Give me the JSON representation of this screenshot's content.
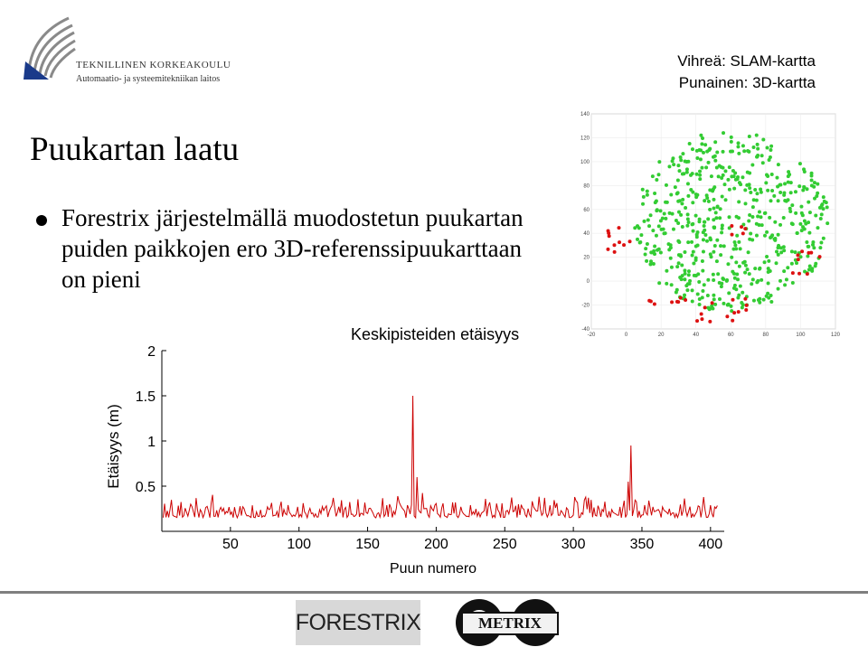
{
  "header": {
    "institution": "TEKNILLINEN KORKEAKOULU",
    "department": "Automaatio- ja systeemitekniikan laitos"
  },
  "legend": {
    "green": "Vihreä: SLAM-kartta",
    "red": "Punainen: 3D-kartta"
  },
  "slide": {
    "title": "Puukartan laatu",
    "bullet": "Forestrix järjestelmällä muodostetun puukartan puiden paikkojen ero 3D-referenssipuukarttaan on pieni"
  },
  "logos": {
    "forestrix": "FORESTRIX",
    "metrix": "METRIX"
  },
  "colors": {
    "green_points": "#33cc33",
    "red_points": "#dd1111",
    "line": "#cc0000",
    "divider": "#7f7f7f"
  },
  "chart_data": [
    {
      "type": "scatter",
      "title": "",
      "xlabel": "",
      "ylabel": "",
      "xlim": [
        -20,
        120
      ],
      "ylim": [
        -40,
        140
      ],
      "xticks": [
        -20,
        0,
        20,
        40,
        60,
        80,
        100,
        120
      ],
      "yticks": [
        -40,
        -20,
        0,
        20,
        40,
        60,
        80,
        100,
        120,
        140
      ],
      "series": [
        {
          "name": "SLAM-kartta",
          "color": "#33cc33",
          "description": "approx. 600 tree positions filling roughly x 5–115, y -20–130"
        },
        {
          "name": "3D-kartta",
          "color": "#dd1111",
          "description": "reference positions, visible mainly along left, bottom and right edges"
        }
      ]
    },
    {
      "type": "line",
      "title": "Keskipisteiden etäisyys",
      "xlabel": "Puun numero",
      "ylabel": "Etäisyys (m)",
      "xlim": [
        0,
        410
      ],
      "ylim": [
        0,
        2
      ],
      "xticks": [
        50,
        100,
        150,
        200,
        250,
        300,
        350,
        400
      ],
      "yticks": [
        0.5,
        1,
        1.5,
        2
      ],
      "series": [
        {
          "name": "Etäisyys",
          "n_points": 405,
          "baseline_range": [
            0.1,
            0.45
          ],
          "peaks": [
            {
              "x": 183,
              "y": 1.5
            },
            {
              "x": 342,
              "y": 0.95
            },
            {
              "x": 186,
              "y": 0.6
            },
            {
              "x": 340,
              "y": 0.55
            }
          ]
        }
      ]
    }
  ]
}
